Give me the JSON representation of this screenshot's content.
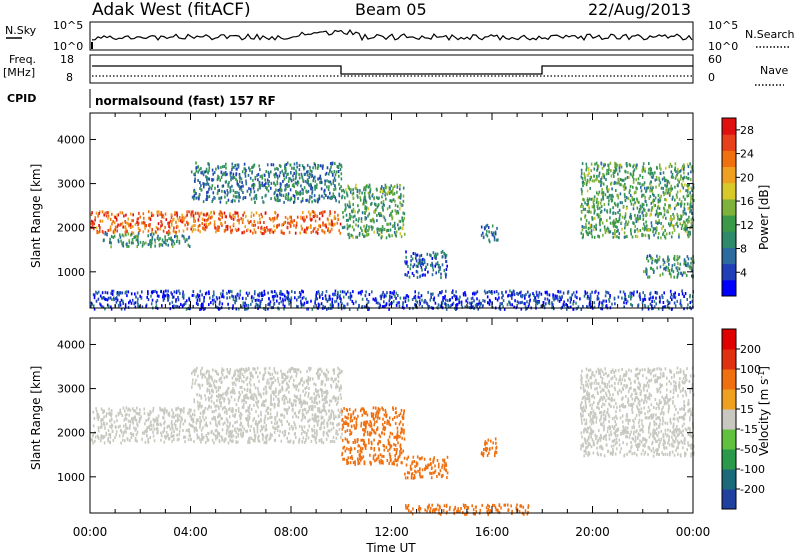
{
  "header": {
    "title": "Adak West (fitACF)",
    "beam": "Beam 05",
    "date": "22/Aug/2013"
  },
  "panels": {
    "nsky_label": "N.Sky",
    "nsky_ticks": [
      "10^5",
      "10^0"
    ],
    "nsearch_label": "N.Search",
    "freq_label": "Freq.",
    "freq_unit": "[MHz]",
    "freq_ticks": [
      "18",
      "8"
    ],
    "nave_label": "Nave",
    "nave_ticks": [
      "60",
      "0"
    ],
    "cpid_label": "CPID",
    "cpid_text": "normalsound (fast) 157 RF"
  },
  "chart_data": [
    {
      "type": "heatmap",
      "name": "power",
      "xlabel": "Time UT",
      "ylabel": "Slant Range [km]",
      "xticks": [
        "00:00",
        "04:00",
        "08:00",
        "12:00",
        "16:00",
        "20:00",
        "00:00"
      ],
      "yticks": [
        "1000",
        "2000",
        "3000",
        "4000"
      ],
      "xlim": [
        0,
        24
      ],
      "ylim": [
        180,
        4600
      ],
      "colorbar": {
        "label": "Power [dB]",
        "ticks": [
          "4",
          "8",
          "12",
          "16",
          "20",
          "24",
          "28"
        ],
        "range": [
          0,
          30
        ],
        "colors": [
          "#0000ff",
          "#1e3fb8",
          "#2c6aa0",
          "#2e8a6a",
          "#3a9a48",
          "#7fb23a",
          "#d9c82a",
          "#f0a020",
          "#f07010",
          "#e8401a",
          "#e01010"
        ]
      },
      "regions": [
        {
          "t": [
            0,
            10
          ],
          "r": [
            1900,
            2400
          ],
          "level": 24
        },
        {
          "t": [
            0.5,
            4
          ],
          "r": [
            1600,
            1900
          ],
          "level": 10
        },
        {
          "t": [
            4,
            10
          ],
          "r": [
            2600,
            3500
          ],
          "level": 8
        },
        {
          "t": [
            10,
            12.5
          ],
          "r": [
            1800,
            3000
          ],
          "level": 12
        },
        {
          "t": [
            12.5,
            14.2
          ],
          "r": [
            900,
            1500
          ],
          "level": 6
        },
        {
          "t": [
            15.5,
            16.2
          ],
          "r": [
            1700,
            2100
          ],
          "level": 8
        },
        {
          "t": [
            19.5,
            24
          ],
          "r": [
            1800,
            3500
          ],
          "level": 12
        },
        {
          "t": [
            22,
            24
          ],
          "r": [
            900,
            1400
          ],
          "level": 10
        },
        {
          "t": [
            0,
            24
          ],
          "r": [
            180,
            600
          ],
          "level": 4
        }
      ]
    },
    {
      "type": "heatmap",
      "name": "velocity",
      "xlabel": "Time UT",
      "ylabel": "Slant Range [km]",
      "xticks": [
        "00:00",
        "04:00",
        "08:00",
        "12:00",
        "16:00",
        "20:00",
        "00:00"
      ],
      "yticks": [
        "1000",
        "2000",
        "3000",
        "4000"
      ],
      "xlim": [
        0,
        24
      ],
      "ylim": [
        180,
        4600
      ],
      "colorbar": {
        "label": "Velocity [m s^-1]",
        "ticks": [
          "200",
          "100",
          "50",
          "15",
          "-15",
          "-50",
          "-100",
          "-200"
        ],
        "colors": [
          "#2040a0",
          "#1a6a7a",
          "#2a9a4a",
          "#60c040",
          "#c8c8c0",
          "#f0a020",
          "#f07010",
          "#e03010",
          "#e00000"
        ]
      },
      "regions": [
        {
          "t": [
            0,
            10
          ],
          "r": [
            1800,
            2600
          ],
          "velocity": 0
        },
        {
          "t": [
            4,
            10
          ],
          "r": [
            2600,
            3500
          ],
          "velocity": 0
        },
        {
          "t": [
            10,
            12.5
          ],
          "r": [
            1300,
            2600
          ],
          "velocity": -60
        },
        {
          "t": [
            12.5,
            14.2
          ],
          "r": [
            1000,
            1500
          ],
          "velocity": -60
        },
        {
          "t": [
            15.5,
            16.2
          ],
          "r": [
            1500,
            1900
          ],
          "velocity": -60
        },
        {
          "t": [
            19.5,
            24
          ],
          "r": [
            1500,
            3500
          ],
          "velocity": 0
        },
        {
          "t": [
            12.5,
            17.5
          ],
          "r": [
            180,
            400
          ],
          "velocity": -60
        }
      ]
    }
  ]
}
